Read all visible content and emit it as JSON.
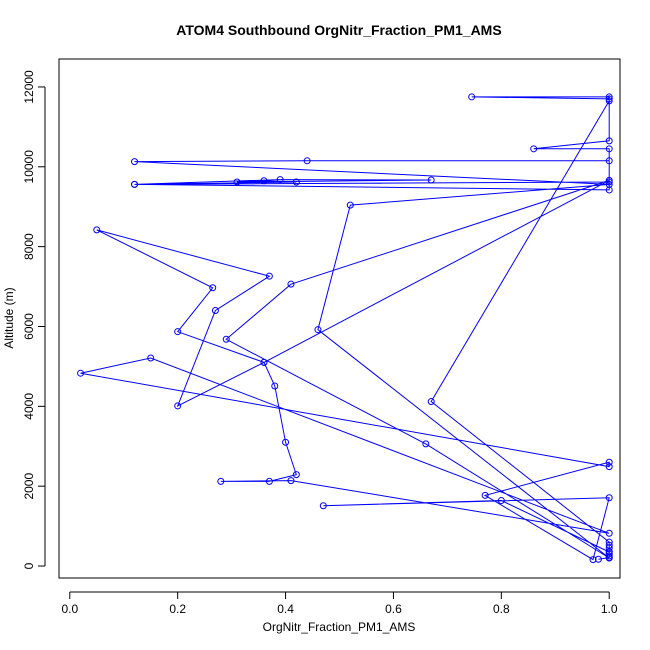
{
  "chart_data": {
    "type": "line",
    "title": "ATOM4 Southbound OrgNitr_Fraction_PM1_AMS",
    "xlabel": "OrgNitr_Fraction_PM1_AMS",
    "ylabel": "Altitude (m)",
    "xlim": [
      -0.02,
      1.02
    ],
    "ylim": [
      -300,
      12700
    ],
    "xticks": [
      0.0,
      0.2,
      0.4,
      0.6,
      0.8,
      1.0
    ],
    "xtick_labels": [
      "0.0",
      "0.2",
      "0.4",
      "0.6",
      "0.8",
      "1.0"
    ],
    "yticks": [
      0,
      2000,
      4000,
      6000,
      8000,
      10000,
      12000
    ],
    "ytick_labels": [
      "0",
      "2000",
      "4000",
      "6000",
      "8000",
      "10000",
      "12000"
    ],
    "grid": false,
    "legend": "none",
    "marker": "open-circle",
    "series": [
      {
        "color": "#0000ff",
        "x": [
          0.98,
          1.0,
          1.0,
          1.0,
          1.0,
          1.0,
          1.0,
          1.0,
          0.67,
          1.0,
          1.0,
          0.745,
          1.0,
          1.0,
          0.86,
          1.0,
          1.0,
          0.12,
          0.42,
          0.36,
          0.31,
          0.67,
          0.39,
          0.12,
          1.0,
          1.0,
          0.44,
          0.12,
          1.0,
          0.52,
          0.46,
          1.0,
          0.66,
          0.29,
          0.41,
          1.0,
          0.36,
          0.2,
          0.265,
          0.05,
          0.37,
          0.27,
          0.2,
          0.36,
          0.38,
          0.4,
          0.42,
          0.37,
          0.28,
          0.41,
          1.0,
          0.15,
          0.02,
          1.0,
          1.0,
          0.77,
          0.97,
          1.0,
          0.47,
          0.8,
          1.0
        ],
        "y": [
          170,
          210,
          250,
          300,
          360,
          450,
          520,
          600,
          4120,
          11650,
          11750,
          11750,
          11700,
          10650,
          10450,
          10450,
          9620,
          9560,
          9620,
          9650,
          9620,
          9670,
          9680,
          9560,
          9420,
          10150,
          10150,
          10130,
          9560,
          9040,
          5920,
          200,
          3060,
          5680,
          7060,
          9660,
          5100,
          5870,
          6970,
          8420,
          7260,
          6400,
          4010,
          5100,
          4510,
          3100,
          2290,
          2120,
          2120,
          2140,
          820,
          5210,
          4830,
          2490,
          2600,
          1770,
          160,
          1710,
          1510,
          1640,
          350
        ]
      }
    ]
  }
}
